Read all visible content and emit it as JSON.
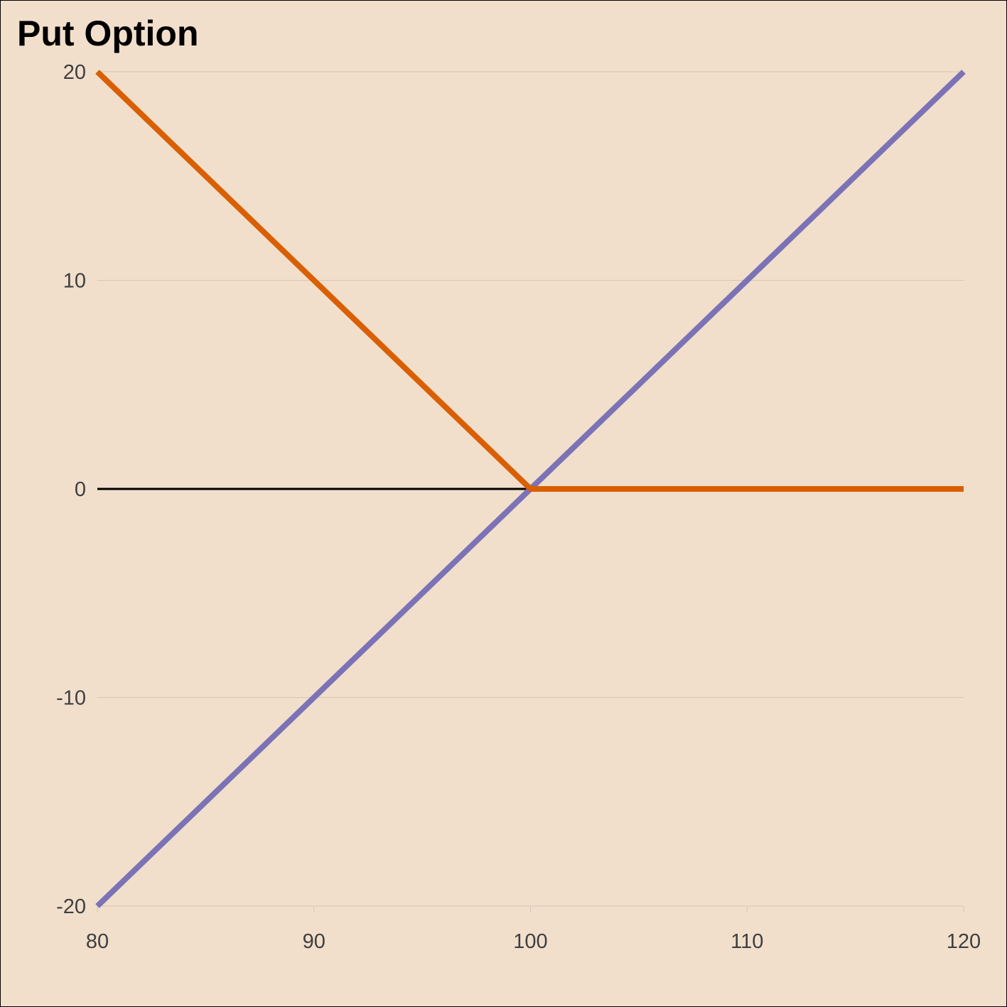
{
  "chart_data": {
    "type": "line",
    "title": "Put Option",
    "xlabel": "",
    "ylabel": "",
    "xlim": [
      80,
      120
    ],
    "ylim": [
      -20,
      20
    ],
    "xticks": [
      80,
      90,
      100,
      110,
      120
    ],
    "yticks": [
      -20,
      -10,
      0,
      10,
      20
    ],
    "xtick_labels": [
      "80",
      "90",
      "100",
      "110",
      "120"
    ],
    "ytick_labels": [
      "-20",
      "-10",
      "0",
      "10",
      "20"
    ],
    "grid": "horizontal",
    "reference_line": {
      "y": 0,
      "color": "#000000"
    },
    "series": [
      {
        "color": "#7b73b6",
        "x": [
          80,
          120
        ],
        "y": [
          -20,
          20
        ]
      },
      {
        "color": "#d95f02",
        "x": [
          80,
          100,
          120
        ],
        "y": [
          20,
          0,
          0
        ]
      }
    ],
    "colors": {
      "background": "#f1dfcc",
      "grid": "#d6c6b5",
      "tick_text": "#3f3f3f"
    }
  }
}
